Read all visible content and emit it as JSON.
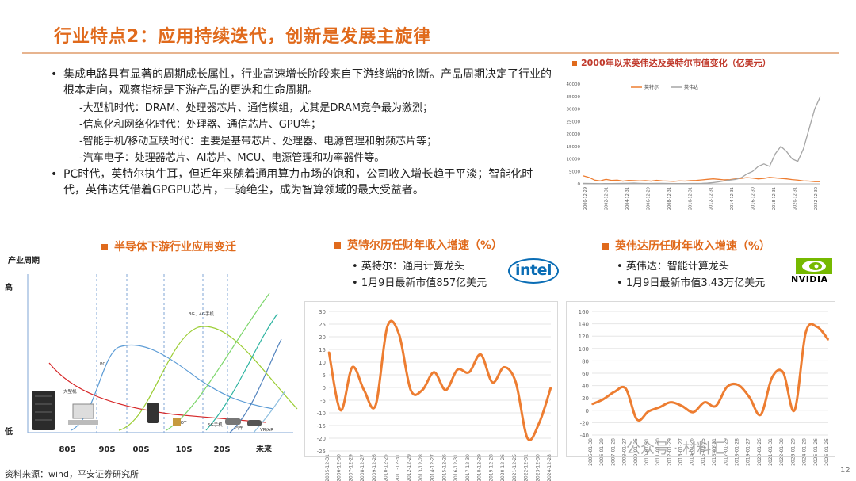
{
  "title": "行业特点2：应用持续迭代，创新是发展主旋律",
  "bullets": [
    "集成电路具有显著的周期成长属性，行业高速增长阶段来自下游终端的创新。产品周期决定了行业的根本走向，观察指标是下游产品的更迭和生命周期。",
    "PC时代，英特尔执牛耳，但近年来随着通用算力市场的饱和，公司收入增长趋于平淡；智能化时代，英伟达凭借着GPGPU芯片，一骑绝尘，成为智算领域的最大受益者。"
  ],
  "sub_items": [
    "-大型机时代：DRAM、处理器芯片、通信模组，尤其是DRAM竞争最为激烈；",
    "-信息化和网络化时代：处理器、通信芯片、GPU等；",
    "-智能手机/移动互联时代：主要是基带芯片、处理器、电源管理和射频芯片等；",
    "-汽车电子：处理器芯片、AI芯片、MCU、电源管理和功率器件等。"
  ],
  "source": "资料来源：wind，平安证券研究所",
  "page_number": "12",
  "watermark": "公众号 · 材料汇",
  "accent_color": "#e06a1c",
  "market_cap_panel": {
    "title": "2000年以来英伟达及英特尔市值变化（亿美元）",
    "chart_data": {
      "type": "line",
      "title": "2000年以来英伟达及英特尔市值变化（亿美元）",
      "yticks": [
        "40000",
        "35000",
        "30000",
        "25000",
        "20000",
        "15000",
        "10000",
        "5000",
        "0"
      ],
      "ylim": [
        0,
        40000
      ],
      "xticks": [
        "2000-12-29",
        "2002-12-31",
        "2004-12-31",
        "2006-12-29",
        "2008-12-31",
        "2010-12-31",
        "2012-12-31",
        "2014-12-31",
        "2016-12-30",
        "2018-12-31",
        "2020-12-31",
        "2022-12-30"
      ],
      "series": [
        {
          "name": "英特尔",
          "color": "#ed7d31",
          "values": [
            3200,
            2600,
            1500,
            1200,
            1800,
            1400,
            1500,
            1100,
            1400,
            1300,
            1200,
            1300,
            1100,
            1400,
            1200,
            1100,
            1000,
            1200,
            1100,
            1300,
            1400,
            1600,
            1800,
            2000,
            1800,
            1600,
            1700,
            2000,
            2200,
            2500,
            2300,
            2000,
            2200,
            2600,
            2400,
            2200,
            2000,
            1700,
            1500,
            1200,
            1100,
            900,
            900
          ]
        },
        {
          "name": "英伟达",
          "color": "#a5a5a5",
          "values": [
            200,
            150,
            100,
            80,
            100,
            120,
            150,
            180,
            250,
            300,
            200,
            150,
            150,
            180,
            200,
            150,
            120,
            100,
            120,
            140,
            160,
            200,
            300,
            500,
            800,
            1200,
            1500,
            1800,
            2500,
            4000,
            5000,
            7000,
            8000,
            7000,
            12000,
            15000,
            13000,
            10000,
            9000,
            14000,
            22000,
            30000,
            35000
          ]
        }
      ]
    }
  },
  "semiconductor_panel": {
    "title": "半导体下游行业应用变迁",
    "ylabel": "产业周期",
    "y_high": "高",
    "y_low": "低",
    "eras": [
      "80S",
      "90S",
      "00S",
      "10S",
      "20S",
      "未来"
    ],
    "curve_labels": {
      "mainframe": "大型机",
      "pc": "PC",
      "mobile": "3G、4G手机",
      "iot": "IOT",
      "g5": "5G手机",
      "auto": "汽车",
      "vrar": "VR/AR"
    }
  },
  "intel_panel": {
    "title": "英特尔历任财年收入增速（%）",
    "bullet1": "英特尔：通用计算龙头",
    "bullet2": "1月9日最新市值857亿美元",
    "logo_text": "intel",
    "chart_data": {
      "type": "line",
      "ylim": [
        -25,
        30
      ],
      "yticks": [
        "30",
        "25",
        "20",
        "15",
        "10",
        "5",
        "0",
        "-5",
        "-10",
        "-15",
        "-20",
        "-25"
      ],
      "x": [
        "2005-12-31",
        "2006-12-30",
        "2007-12-29",
        "2008-12-27",
        "2009-12-26",
        "2010-12-25",
        "2011-12-31",
        "2012-12-29",
        "2013-12-28",
        "2014-12-27",
        "2015-12-26",
        "2016-12-31",
        "2017-12-30",
        "2018-12-29",
        "2019-12-28",
        "2020-12-26",
        "2021-12-25",
        "2022-12-31",
        "2023-12-30",
        "2024-12-28"
      ],
      "values": [
        14,
        -9,
        8,
        -1,
        -7,
        24,
        21,
        -1,
        -1,
        6,
        -1,
        7,
        6,
        13,
        2,
        8,
        2,
        -20,
        -14,
        0
      ],
      "color": "#ed7d31"
    }
  },
  "nvidia_panel": {
    "title": "英伟达历任财年收入增速（%）",
    "bullet1": "英伟达：智能计算龙头",
    "bullet2": "1月9日最新市值3.43万亿美元",
    "logo_text": "NVIDIA",
    "chart_data": {
      "type": "line",
      "ylim": [
        -40,
        160
      ],
      "yticks": [
        "160",
        "140",
        "120",
        "100",
        "80",
        "60",
        "40",
        "20",
        "0",
        "-20",
        "-40"
      ],
      "x": [
        "2005-01-30",
        "2006-01-29",
        "2007-01-28",
        "2008-01-27",
        "2009-01-25",
        "2010-01-31",
        "2011-01-30",
        "2012-01-29",
        "2013-01-27",
        "2014-01-26",
        "2015-01-25",
        "2016-01-31",
        "2017-01-29",
        "2018-01-28",
        "2019-01-27",
        "2020-01-26",
        "2021-01-31",
        "2022-01-30",
        "2023-01-29",
        "2024-01-28",
        "2025-01-26",
        "2026-01-25"
      ],
      "values": [
        10,
        18,
        30,
        35,
        -15,
        -2,
        5,
        13,
        7,
        -3,
        13,
        7,
        38,
        41,
        21,
        -7,
        53,
        61,
        0,
        126,
        135,
        114
      ],
      "color": "#ed7d31"
    }
  }
}
